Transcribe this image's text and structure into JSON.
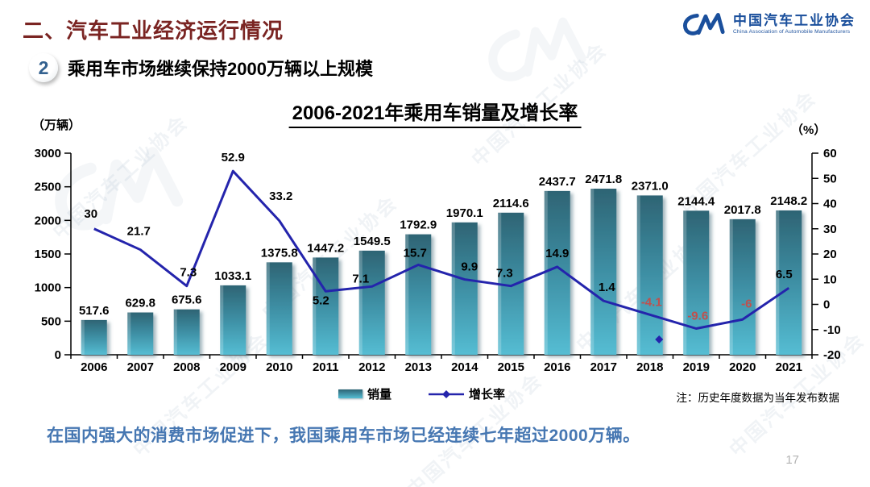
{
  "page": {
    "section_title": "二、汽车工业经济运行情况",
    "point_number": "2",
    "point_title": "乘用车市场继续保持2000万辆以上规模",
    "note": "注：历史年度数据为当年发布数据",
    "footer_text": "在国内强大的消费市场促进下，我国乘用车市场已经连续七年超过2000万辆。",
    "page_number": "17",
    "watermark_text": "中国汽车工业协会"
  },
  "logo": {
    "mark": "CM-swoosh",
    "name_cn": "中国汽车工业协会",
    "name_en": "China Association of Automobile Manufacturers",
    "color": "#1a4f9c"
  },
  "chart_data": {
    "type": "bar",
    "title": "2006-2021年乘用车销量及增长率",
    "left_axis_label": "（万辆）",
    "right_axis_label": "（%）",
    "categories": [
      "2006",
      "2007",
      "2008",
      "2009",
      "2010",
      "2011",
      "2012",
      "2013",
      "2014",
      "2015",
      "2016",
      "2017",
      "2018",
      "2019",
      "2020",
      "2021"
    ],
    "series": [
      {
        "name": "销量",
        "type": "bar",
        "axis": "left",
        "values": [
          517.6,
          629.8,
          675.6,
          1033.1,
          1375.8,
          1447.2,
          1549.5,
          1792.9,
          1970.1,
          2114.6,
          2437.7,
          2471.8,
          2371.0,
          2144.4,
          2017.8,
          2148.2
        ],
        "labels": [
          "517.6",
          "629.8",
          "675.6",
          "1033.1",
          "1375.8",
          "1447.2",
          "1549.5",
          "1792.9",
          "1970.1",
          "2114.6",
          "2437.7",
          "2471.8",
          "2371.0",
          "2144.4",
          "2017.8",
          "2148.2"
        ],
        "color_top": "#2e6474",
        "color_bottom": "#55bdd3"
      },
      {
        "name": "增长率",
        "type": "line",
        "axis": "right",
        "values": [
          30,
          21.7,
          7.3,
          52.9,
          33.2,
          5.2,
          7.1,
          15.7,
          9.9,
          7.3,
          14.9,
          1.4,
          -4.1,
          -9.6,
          -6,
          6.5
        ],
        "labels": [
          "30",
          "21.7",
          "7.3",
          "52.9",
          "33.2",
          "5.2",
          "7.1",
          "15.7",
          "9.9",
          "7.3",
          "14.9",
          "1.4",
          "-4.1",
          "-9.6",
          "-6",
          "6.5"
        ],
        "color": "#2424ac"
      }
    ],
    "left_axis": {
      "min": 0,
      "max": 3000,
      "step": 500
    },
    "right_axis": {
      "min": -20,
      "max": 60,
      "step": 10
    },
    "label_color": "#000000",
    "negative_label_color": "#c0504d",
    "grid": false,
    "legend_position": "bottom",
    "stray_marker": {
      "x_index": 12.2,
      "value": -13.9
    }
  }
}
